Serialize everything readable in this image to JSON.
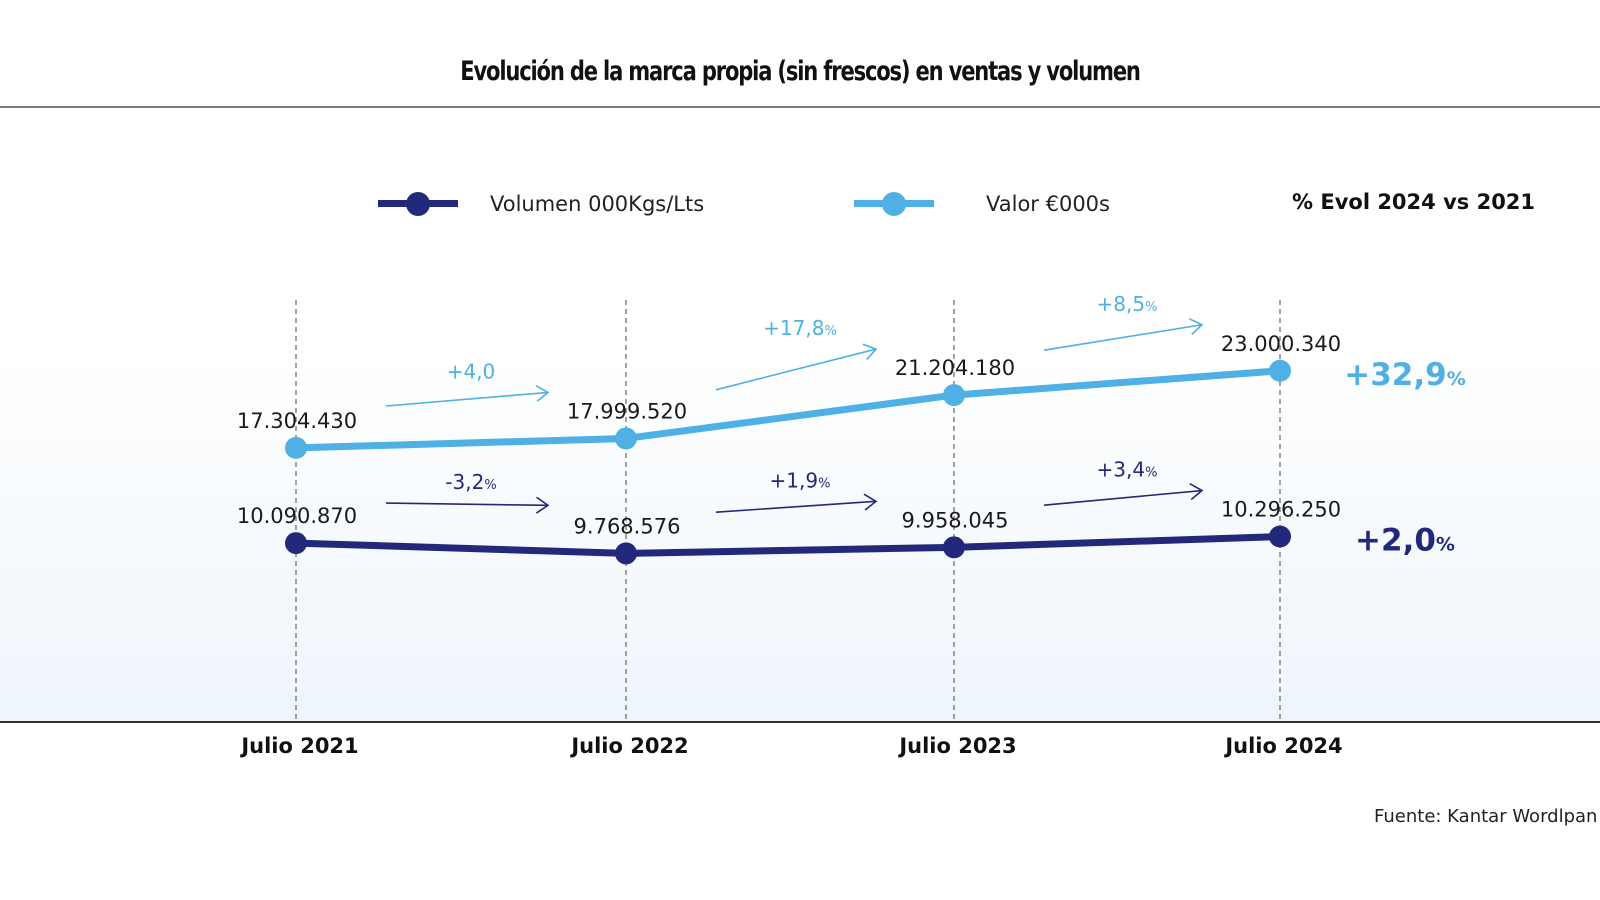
{
  "colors": {
    "volumen": "#23297a",
    "valor": "#4fb0e5",
    "grid": "#666666",
    "text": "#1a1a1a"
  },
  "header": {
    "title": "Evolución de la marca propia (sin frescos) en ventas y volumen"
  },
  "legend": {
    "items": [
      {
        "label": "Volumen 000Kgs/Lts",
        "series": "volumen"
      },
      {
        "label": "Valor €000s",
        "series": "valor"
      }
    ],
    "evol_header": "% Evol 2024 vs 2021"
  },
  "footer": {
    "source": "Fuente: Kantar Wordlpan"
  },
  "chart_data": {
    "type": "line",
    "title": "Evolución de la marca propia (sin frescos) en ventas y volumen",
    "xlabel": "",
    "ylabel": "",
    "categories": [
      "Julio 2021",
      "Julio 2022",
      "Julio 2023",
      "Julio 2024"
    ],
    "grid": "vertical dashed lines at each category",
    "legend_position": "top",
    "series": [
      {
        "name": "Valor €000s",
        "key": "valor",
        "values": [
          17304430,
          17999520,
          21204180,
          23000340
        ],
        "value_labels": [
          "17.304.430",
          "17.999.520",
          "21.204.180",
          "23.000.340"
        ],
        "period_changes": [
          {
            "text": "+4,0",
            "unit": ""
          },
          {
            "text": "+17,8",
            "unit": "%"
          },
          {
            "text": "+8,5",
            "unit": "%"
          }
        ],
        "total_change": {
          "text": "+32,9",
          "unit": "%"
        }
      },
      {
        "name": "Volumen 000Kgs/Lts",
        "key": "volumen",
        "values": [
          10090870,
          9768576,
          9958045,
          10296250
        ],
        "value_labels": [
          "10.090.870",
          "9.768.576",
          "9.958.045",
          "10.296.250"
        ],
        "period_changes": [
          {
            "text": "-3,2",
            "unit": "%"
          },
          {
            "text": "+1,9",
            "unit": "%"
          },
          {
            "text": "+3,4",
            "unit": "%"
          }
        ],
        "total_change": {
          "text": "+2,0",
          "unit": "%"
        }
      }
    ],
    "annotation_header": "% Evol 2024 vs 2021",
    "source": "Fuente: Kantar Wordlpan"
  }
}
